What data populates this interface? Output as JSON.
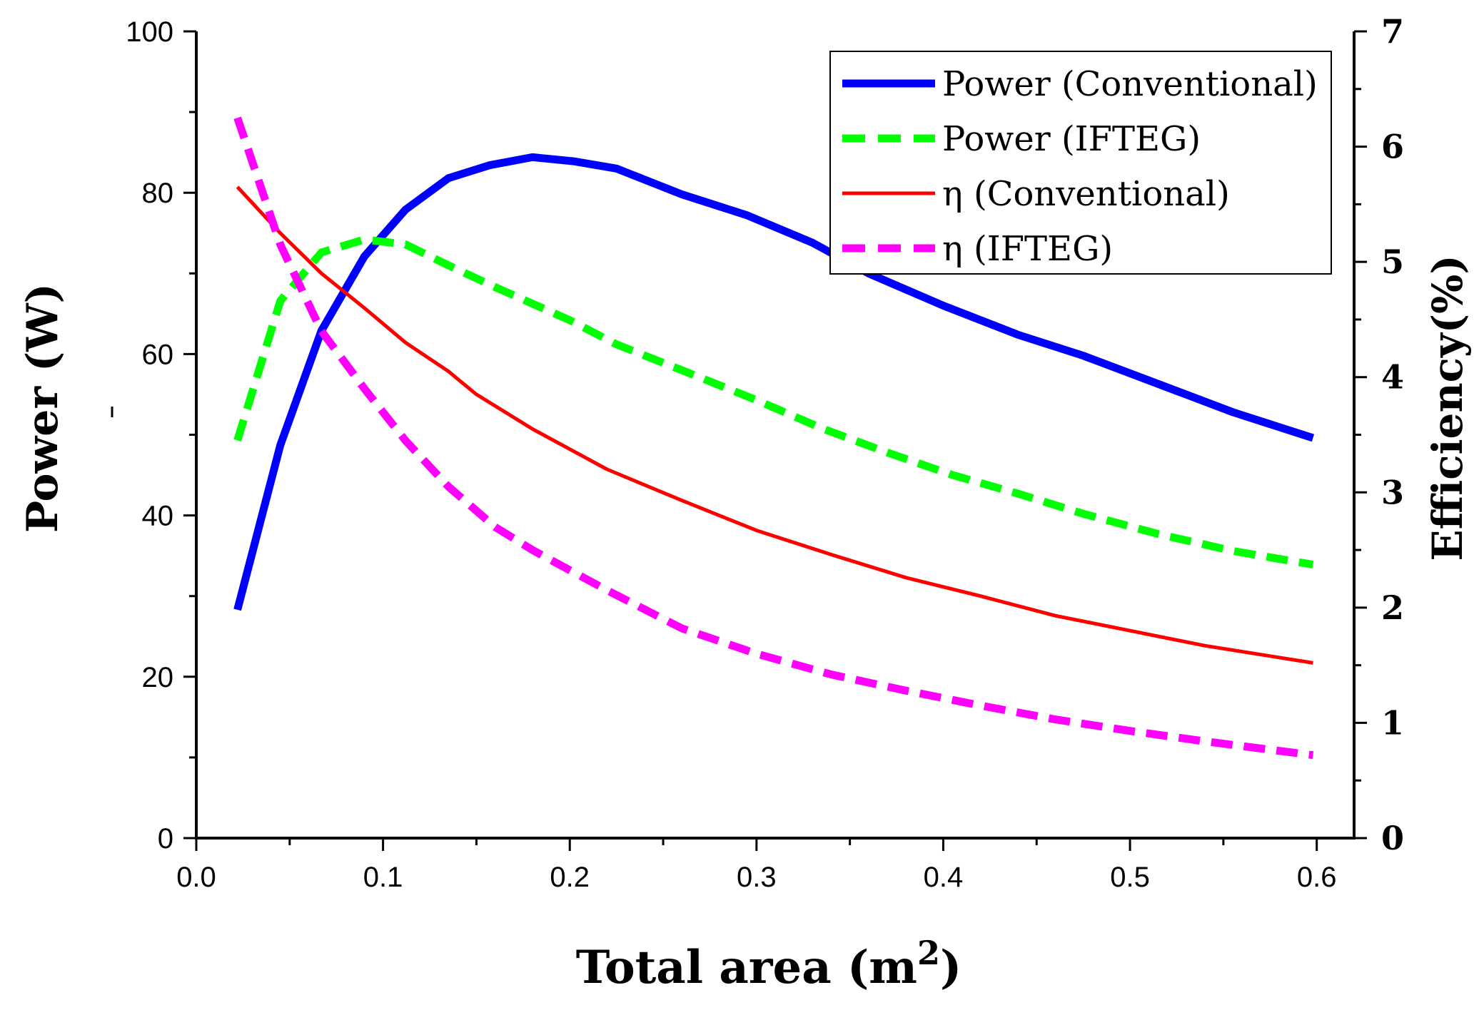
{
  "chart_data": {
    "type": "line",
    "xlabel": "Total area (m",
    "xlabel_sup": "2",
    "xlabel_close": ")",
    "ylabel": "Power (W)",
    "y2label": "Efficiency(%)",
    "xlim": [
      0.0,
      0.62
    ],
    "ylim": [
      0,
      100
    ],
    "y2lim": [
      0,
      7
    ],
    "x_ticks": [
      "0.0",
      "0.1",
      "0.2",
      "0.3",
      "0.4",
      "0.5",
      "0.6"
    ],
    "x_tick_values": [
      0.0,
      0.1,
      0.2,
      0.3,
      0.4,
      0.5,
      0.6
    ],
    "y_ticks": [
      "0",
      "20",
      "40",
      "60",
      "80",
      "100"
    ],
    "y_tick_values": [
      0,
      20,
      40,
      60,
      80,
      100
    ],
    "y2_ticks": [
      "0",
      "1",
      "2",
      "3",
      "4",
      "5",
      "6",
      "7"
    ],
    "y2_tick_values": [
      0,
      1,
      2,
      3,
      4,
      5,
      6,
      7
    ],
    "grid": false,
    "legend_position": "top-right",
    "series": [
      {
        "name": "Power (Conventional)",
        "axis": "left",
        "color": "#0000ff",
        "style": "solid-thick",
        "x": [
          0.022,
          0.045,
          0.067,
          0.09,
          0.112,
          0.135,
          0.157,
          0.18,
          0.202,
          0.225,
          0.26,
          0.295,
          0.33,
          0.36,
          0.4,
          0.44,
          0.475,
          0.515,
          0.555,
          0.598
        ],
        "y": [
          28.3,
          48.7,
          62.9,
          72.1,
          77.9,
          81.8,
          83.4,
          84.4,
          83.9,
          83.0,
          79.8,
          77.2,
          73.8,
          70.0,
          66.0,
          62.4,
          59.8,
          56.3,
          52.8,
          49.6
        ]
      },
      {
        "name": "Power (IFTEG)",
        "axis": "left",
        "color": "#00ff00",
        "style": "dashed-thick",
        "x": [
          0.022,
          0.045,
          0.067,
          0.09,
          0.112,
          0.135,
          0.16,
          0.2,
          0.225,
          0.26,
          0.3,
          0.335,
          0.37,
          0.405,
          0.44,
          0.475,
          0.515,
          0.555,
          0.598
        ],
        "y": [
          49.3,
          66.6,
          72.6,
          74.2,
          73.6,
          71.0,
          68.3,
          64.2,
          61.2,
          58.0,
          54.3,
          50.8,
          47.8,
          45.0,
          42.7,
          40.2,
          37.7,
          35.6,
          33.9
        ]
      },
      {
        "name": "η (Conventional)",
        "axis": "right",
        "color": "#ff0000",
        "style": "solid-thin",
        "x": [
          0.022,
          0.045,
          0.067,
          0.09,
          0.112,
          0.135,
          0.15,
          0.18,
          0.22,
          0.26,
          0.3,
          0.34,
          0.38,
          0.42,
          0.46,
          0.5,
          0.54,
          0.598
        ],
        "y": [
          5.65,
          5.25,
          4.9,
          4.6,
          4.3,
          4.05,
          3.85,
          3.55,
          3.2,
          2.93,
          2.67,
          2.46,
          2.26,
          2.1,
          1.93,
          1.8,
          1.67,
          1.52
        ]
      },
      {
        "name": "η (IFTEG)",
        "axis": "right",
        "color": "#ff00ff",
        "style": "dashed-thick",
        "x": [
          0.022,
          0.045,
          0.067,
          0.09,
          0.112,
          0.135,
          0.16,
          0.18,
          0.22,
          0.26,
          0.3,
          0.34,
          0.38,
          0.42,
          0.46,
          0.5,
          0.54,
          0.598
        ],
        "y": [
          6.25,
          5.15,
          4.4,
          3.9,
          3.45,
          3.05,
          2.7,
          2.5,
          2.15,
          1.82,
          1.6,
          1.42,
          1.28,
          1.15,
          1.03,
          0.93,
          0.84,
          0.72
        ]
      }
    ]
  }
}
